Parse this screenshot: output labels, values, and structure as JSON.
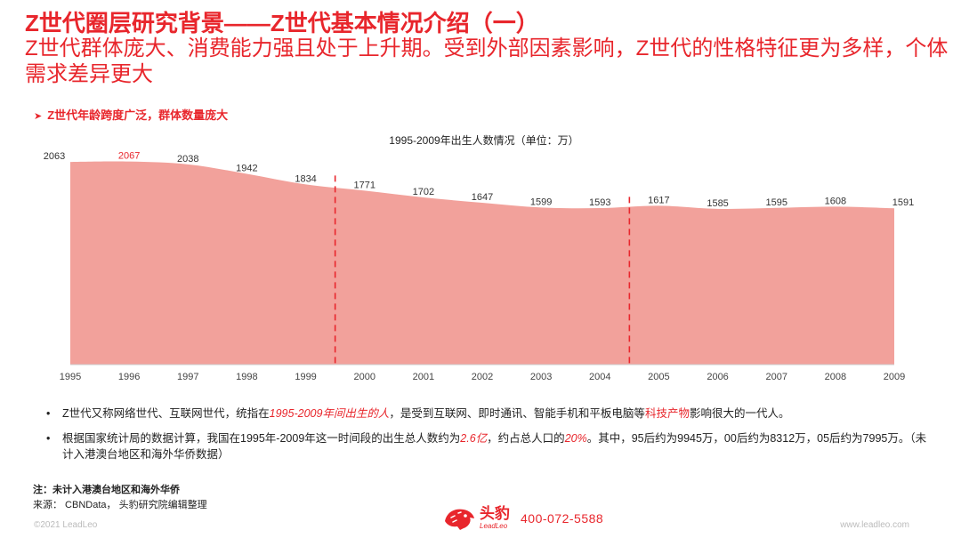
{
  "header": {
    "title": "Z世代圈层研究背景——Z世代基本情况介绍（一）",
    "subtitle": "Z世代群体庞大、消费能力强且处于上升期。受到外部因素影响，Z世代的性格特征更为多样，个体需求差异更大"
  },
  "section": {
    "arrow": "➤",
    "label": "Z世代年龄跨度广泛，群体数量庞大"
  },
  "chart_data": {
    "type": "area",
    "title": "1995-2009年出生人数情况（单位：万）",
    "x": [
      "1995",
      "1996",
      "1997",
      "1998",
      "1999",
      "2000",
      "2001",
      "2002",
      "2003",
      "2004",
      "2005",
      "2006",
      "2007",
      "2008",
      "2009"
    ],
    "values": [
      2063,
      2067,
      2038,
      1942,
      1834,
      1771,
      1702,
      1647,
      1599,
      1593,
      1617,
      1585,
      1595,
      1608,
      1591
    ],
    "highlight_label_index": 1,
    "area_color": "#f2a19b",
    "highlight_color": "#e8262c",
    "dividers_between": [
      [
        "1999",
        "2000"
      ],
      [
        "2004",
        "2005"
      ]
    ],
    "grid": false
  },
  "bullets": {
    "b1_pre": "Z世代又称网络世代、互联网世代，统指在",
    "b1_hl": "1995-2009年间出生的人",
    "b1_mid": "，是受到互联网、即时通讯、智能手机和平板电脑等",
    "b1_hl2": "科技产物",
    "b1_post": "影响很大的一代人。",
    "b2_pre": "根据国家统计局的数据计算，我国在1995年-2009年这一时间段的出生总人数约为",
    "b2_hl": "2.6亿",
    "b2_mid": "，约占总人口的",
    "b2_hl2": "20%",
    "b2_post": "。其中，95后约为9945万，00后约为8312万，05后约为7995万。（未计入港澳台地区和海外华侨数据）"
  },
  "footer": {
    "note": "注：未计入港澳台地区和海外华侨",
    "source": "来源： CBNData， 头豹研究院编辑整理",
    "copyright": "©2021 LeadLeo",
    "website": "www.leadleo.com",
    "brand_cn": "头豹",
    "brand_en": "LeadLeo",
    "phone": "400-072-5588"
  }
}
